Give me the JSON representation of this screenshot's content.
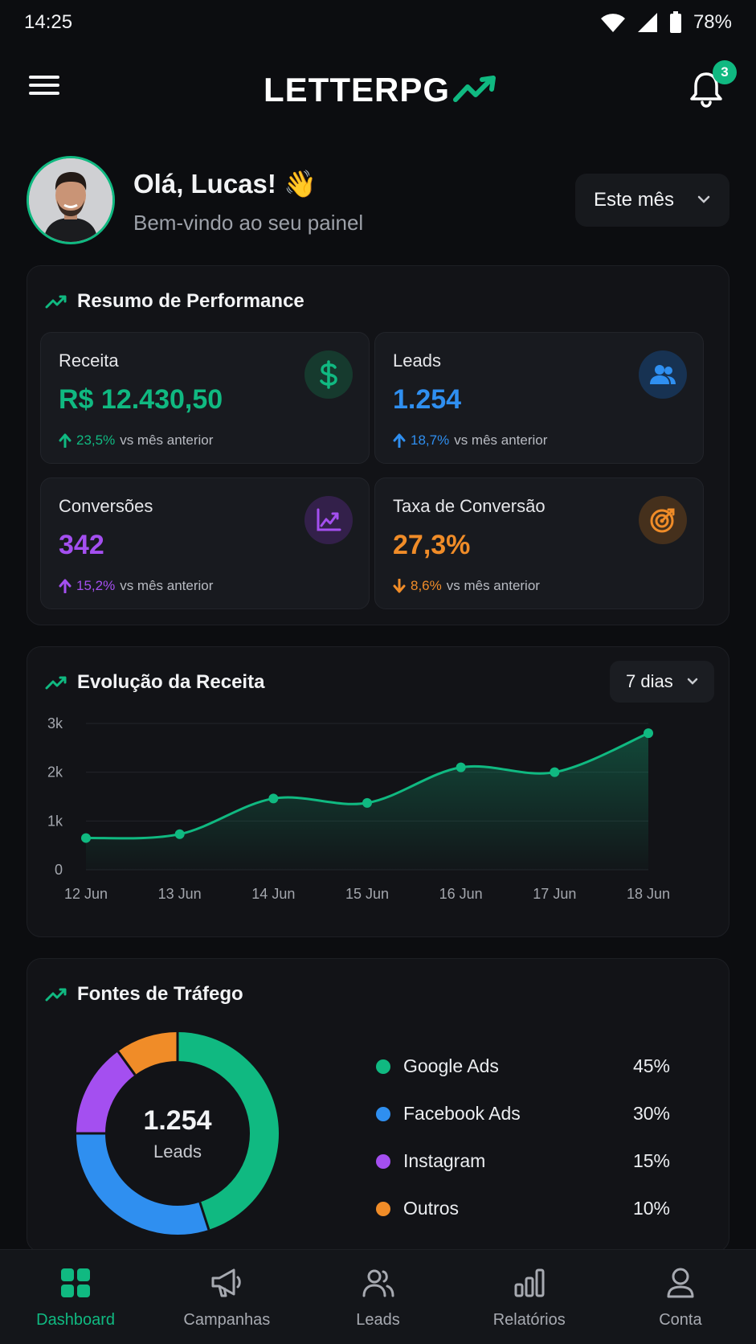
{
  "status_bar": {
    "time": "14:25",
    "battery": "78%"
  },
  "header": {
    "logo_text": "LETTERPG",
    "notification_count": "3",
    "icons": {
      "menu": "hamburger-icon",
      "bell": "bell-icon",
      "logo": "trend-arrow-icon"
    }
  },
  "greeting": {
    "title": "Olá, Lucas! 👋",
    "subtitle": "Bem-vindo ao seu painel",
    "period": "Este mês"
  },
  "performance": {
    "title": "Resumo de Performance",
    "metrics": [
      {
        "label": "Receita",
        "value": "R$ 12.430,50",
        "delta": "23,5%",
        "delta_text": "vs mês anterior",
        "direction": "up",
        "color": "#10b981",
        "icon": "dollar-icon"
      },
      {
        "label": "Leads",
        "value": "1.254",
        "delta": "18,7%",
        "delta_text": "vs mês anterior",
        "direction": "up",
        "color": "#2f8ff0",
        "icon": "users-icon"
      },
      {
        "label": "Conversões",
        "value": "342",
        "delta": "15,2%",
        "delta_text": "vs mês anterior",
        "direction": "up",
        "color": "#a44ff0",
        "icon": "chart-growth-icon"
      },
      {
        "label": "Taxa de Conversão",
        "value": "27,3%",
        "delta": "8,6%",
        "delta_text": "vs mês anterior",
        "direction": "down",
        "color": "#f08c28",
        "icon": "target-icon"
      }
    ]
  },
  "revenue": {
    "title": "Evolução da Receita",
    "range": "7 dias"
  },
  "chart_data": {
    "type": "area",
    "categories": [
      "12 Jun",
      "13 Jun",
      "14 Jun",
      "15 Jun",
      "16 Jun",
      "17 Jun",
      "18 Jun"
    ],
    "values": [
      650,
      730,
      1460,
      1370,
      2100,
      2000,
      2800
    ],
    "y_ticks": [
      "0",
      "1k",
      "2k",
      "3k"
    ],
    "ylim": [
      0,
      3000
    ],
    "grid": true,
    "color": "#10b981"
  },
  "traffic": {
    "title": "Fontes de Tráfego",
    "total": "1.254",
    "total_label": "Leads",
    "sources": [
      {
        "name": "Google Ads",
        "pct": "45%",
        "value": 45,
        "color": "#10b981"
      },
      {
        "name": "Facebook Ads",
        "pct": "30%",
        "value": 30,
        "color": "#2f8ff0"
      },
      {
        "name": "Instagram",
        "pct": "15%",
        "value": 15,
        "color": "#a44ff0"
      },
      {
        "name": "Outros",
        "pct": "10%",
        "value": 10,
        "color": "#f08c28"
      }
    ]
  },
  "nav": [
    {
      "label": "Dashboard",
      "icon": "grid-icon",
      "active": true
    },
    {
      "label": "Campanhas",
      "icon": "megaphone-icon",
      "active": false
    },
    {
      "label": "Leads",
      "icon": "users-icon",
      "active": false
    },
    {
      "label": "Relatórios",
      "icon": "bar-chart-icon",
      "active": false
    },
    {
      "label": "Conta",
      "icon": "user-icon",
      "active": false
    }
  ]
}
